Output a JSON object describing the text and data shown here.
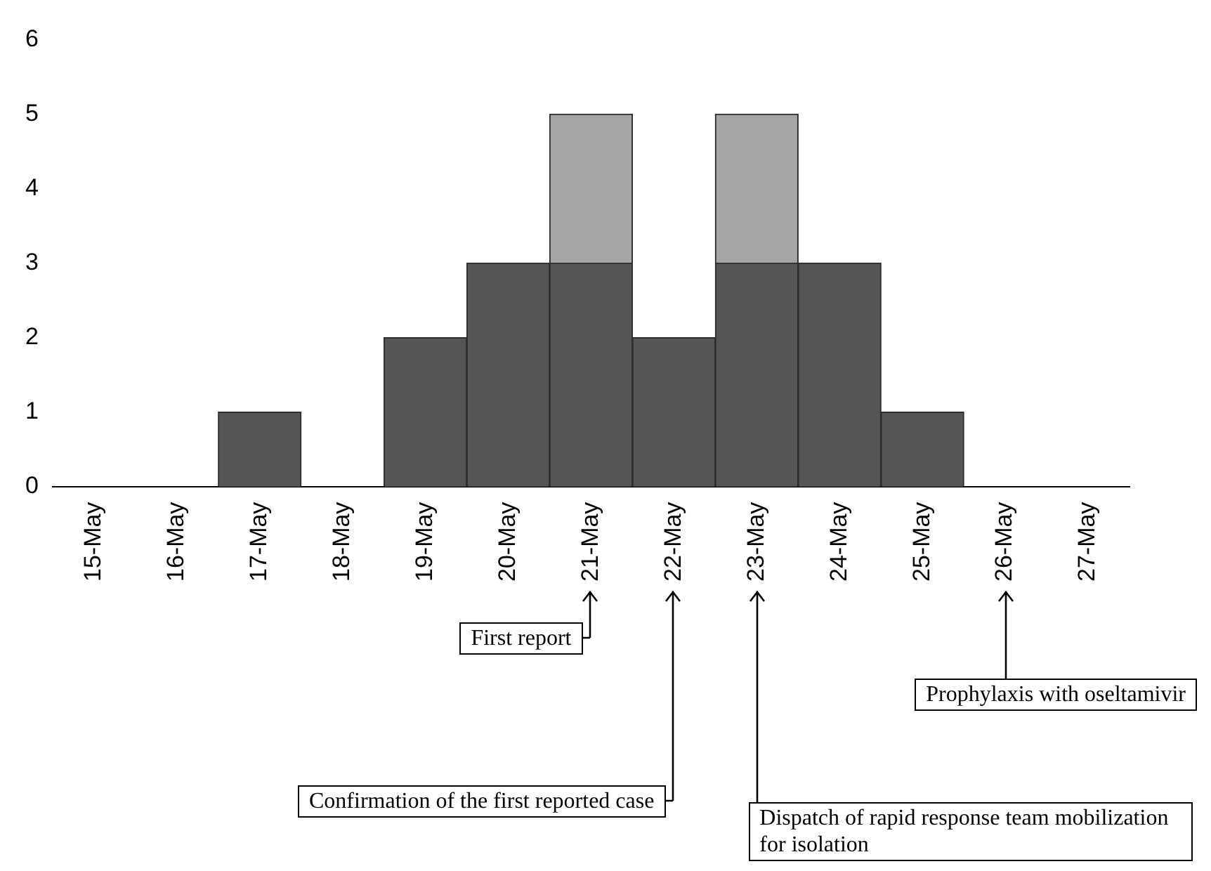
{
  "chart_data": {
    "type": "bar",
    "stacked": true,
    "categories": [
      "15-May",
      "16-May",
      "17-May",
      "18-May",
      "19-May",
      "20-May",
      "21-May",
      "22-May",
      "23-May",
      "24-May",
      "25-May",
      "26-May",
      "27-May"
    ],
    "series": [
      {
        "color": "#555555",
        "values": [
          0,
          0,
          1,
          0,
          2,
          3,
          3,
          2,
          3,
          3,
          1,
          0,
          0
        ]
      },
      {
        "color": "#a6a6a6",
        "values": [
          0,
          0,
          0,
          0,
          0,
          0,
          2,
          0,
          2,
          0,
          0,
          0,
          0
        ]
      }
    ],
    "ylim": [
      0,
      6
    ],
    "yticks": [
      0,
      1,
      2,
      3,
      4,
      5,
      6
    ],
    "grid": false,
    "legend": false,
    "annotations": [
      "First report",
      "Confirmation of the first reported case",
      "Dispatch of rapid response team mobilization for isolation",
      "Prophylaxis with oseltamivir"
    ]
  }
}
